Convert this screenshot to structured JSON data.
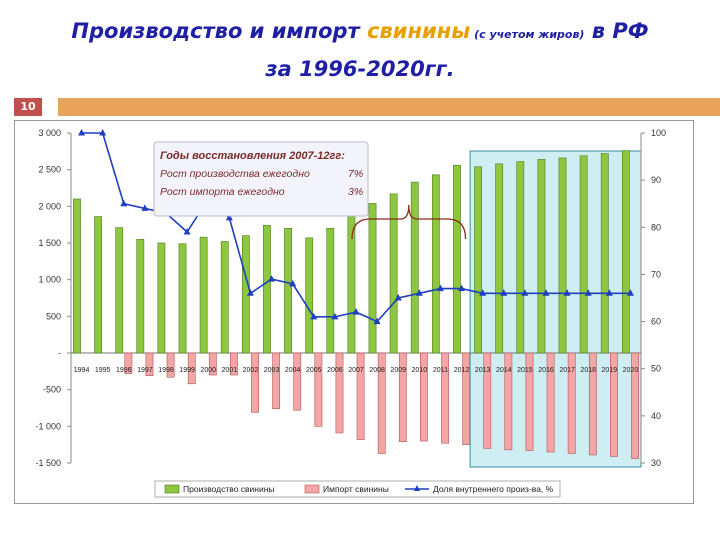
{
  "slide": {
    "title_part1": "Производство и импорт ",
    "title_highlight": "свинины",
    "title_note": " (с учетом жиров)",
    "title_part2": " в РФ",
    "title_line2": "за 1996-2020гг.",
    "slide_number": "10"
  },
  "colors": {
    "title": "#1f1fa6",
    "highlight": "#e8a000",
    "production": "#8dc63f",
    "import": "#f4a6a6",
    "share_line": "#1f3fbf",
    "forecast_box": "#bfe8ef",
    "callout_text": "#7a2a2a"
  },
  "chart_data": {
    "type": "bar",
    "categories": [
      "1994",
      "1995",
      "1996",
      "1997",
      "1998",
      "1999",
      "2000",
      "2001",
      "2002",
      "2003",
      "2004",
      "2005",
      "2006",
      "2007",
      "2008",
      "2009",
      "2010",
      "2011",
      "2012",
      "2013",
      "2014",
      "2015",
      "2016",
      "2017",
      "2018",
      "2019",
      "2020"
    ],
    "series": [
      {
        "name": "Производство свинины",
        "type": "bar",
        "axis": "left",
        "values": [
          2100,
          1860,
          1710,
          1550,
          1500,
          1490,
          1580,
          1520,
          1600,
          1740,
          1700,
          1570,
          1700,
          1930,
          2040,
          2170,
          2330,
          2430,
          2560,
          2540,
          2580,
          2610,
          2640,
          2660,
          2690,
          2720,
          2760
        ]
      },
      {
        "name": "Импорт свинины",
        "type": "bar",
        "axis": "left",
        "values": [
          0,
          0,
          -280,
          -310,
          -330,
          -420,
          -300,
          -300,
          -810,
          -760,
          -780,
          -1000,
          -1090,
          -1180,
          -1370,
          -1210,
          -1200,
          -1230,
          -1250,
          -1300,
          -1320,
          -1330,
          -1350,
          -1370,
          -1390,
          -1410,
          -1440
        ]
      },
      {
        "name": "Доля внутреннего произ-ва, %",
        "type": "line",
        "axis": "right",
        "values": [
          100,
          100,
          85,
          84,
          83,
          79,
          86,
          82,
          66,
          69,
          68,
          61,
          61,
          62,
          60,
          65,
          66,
          67,
          67,
          66,
          66,
          66,
          66,
          66,
          66,
          66,
          66
        ]
      }
    ],
    "ylim_left": [
      -1500,
      3000
    ],
    "yticks_left": [
      "3 000",
      "2 500",
      "2 000",
      "1 500",
      "1 000",
      "500",
      "-",
      "-500",
      "-1 000",
      "-1 500"
    ],
    "ylim_right": [
      30,
      100
    ],
    "yticks_right": [
      "100",
      "90",
      "80",
      "70",
      "60",
      "50",
      "40",
      "30"
    ],
    "forecast_from": "2013",
    "legend_position": "bottom",
    "grid": false,
    "callout": {
      "title": "Годы восстановления 2007-12гг:",
      "line1_label": "Рост производства ежегодно",
      "line1_value": "7%",
      "line2_label": "Рост импорта ежегодно",
      "line2_value": "3%"
    }
  }
}
